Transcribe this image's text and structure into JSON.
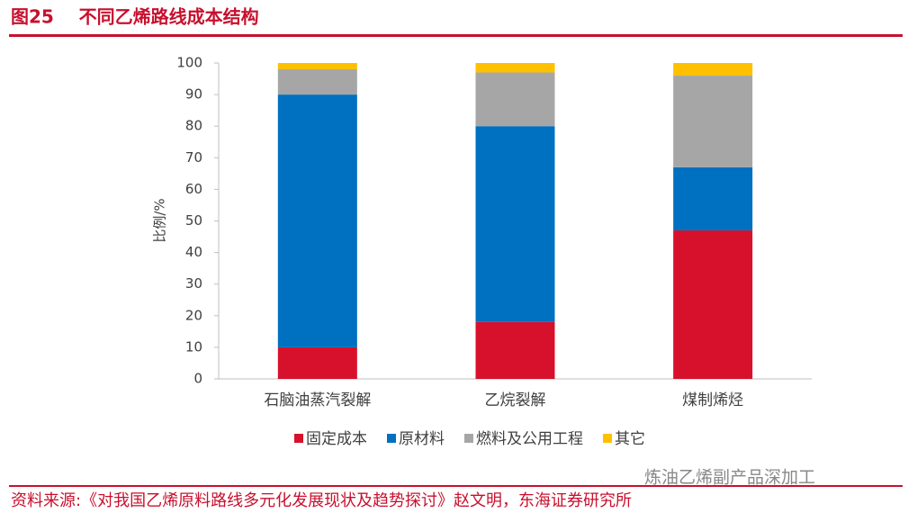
{
  "chart_data": {
    "type": "stacked_bar",
    "title": "图25    不同乙烯路线成本结构",
    "y_label": "比例/%",
    "categories": [
      "石脑油蒸汽裂解",
      "乙烷裂解",
      "煤制烯烃"
    ],
    "series": [
      {
        "name": "固定成本",
        "color": "#d7102b",
        "values": [
          10,
          18,
          47
        ]
      },
      {
        "name": "原材料",
        "color": "#0070c0",
        "values": [
          80,
          62,
          20
        ]
      },
      {
        "name": "燃料及公用工程",
        "color": "#a6a6a6",
        "values": [
          8,
          17,
          29
        ]
      },
      {
        "name": "其它",
        "color": "#ffc000",
        "values": [
          2,
          3,
          4
        ]
      }
    ],
    "ylim": [
      0,
      100
    ],
    "yticks": [
      0,
      10,
      20,
      30,
      40,
      50,
      60,
      70,
      80,
      90,
      100
    ],
    "legend": "bottom",
    "source": "资料来源:《对我国乙烯原料路线多元化发展现状及趋势探讨》赵文明，东海证券研究所",
    "watermark": "炼油乙烯副产品深加工"
  }
}
